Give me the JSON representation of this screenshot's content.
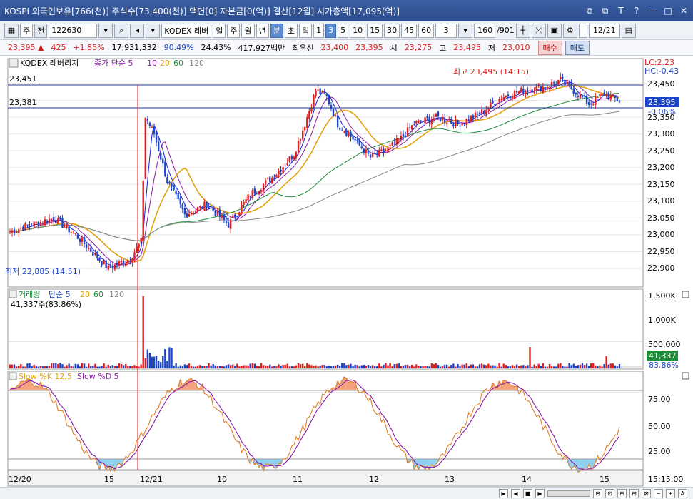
{
  "window": {
    "title": "KOSPI 외국인보유[766(천)] 주식수[73,400(천)] 액면[0] 자본금[0(억)] 결산[12월] 시가총액[17,095(억)]",
    "buttons": [
      "⧉",
      "⧉",
      "T",
      "?",
      "—",
      "□",
      "✕"
    ]
  },
  "toolbar": {
    "market": "주",
    "mode": "전",
    "code": "122630",
    "stock_name": "KODEX 레버",
    "periods": [
      "일",
      "주",
      "월",
      "년",
      "분",
      "초",
      "틱"
    ],
    "active_period": "분",
    "intervals": [
      "1",
      "3",
      "5",
      "10",
      "15",
      "30",
      "45",
      "60"
    ],
    "active_interval": "3",
    "interval_value": "3",
    "page": "160",
    "page_total": "/901",
    "date": "12/21"
  },
  "quote": {
    "price": "23,395",
    "arrow": "▲",
    "change": "425",
    "change_pct": "+1.85%",
    "volume": "17,931,332",
    "rate1": "90.49%",
    "rate2": "24.43%",
    "amount": "417,927백만",
    "best_label": "최우선",
    "best_ask": "23,400",
    "best_bid": "23,395",
    "open_label": "시",
    "open": "23,275",
    "high_label": "고",
    "high": "23,495",
    "low_label": "저",
    "low": "23,010",
    "buy_button": "매수",
    "sell_button": "매도"
  },
  "price_panel": {
    "name": "KODEX 레버리지",
    "indicator": "종가 단순 5",
    "ma_labels": [
      "10",
      "20",
      "60",
      "120"
    ],
    "lc": "LC:2.23",
    "hc": "HC:-0.43",
    "hline_top": "23,451",
    "hline_bottom": "23,381",
    "current_price": "23,395",
    "current_pct": "-0.06%",
    "max_label": "최고 23,495 (14:15)",
    "min_label": "최저 22,885 (14:51)",
    "y_ticks": [
      "23,450",
      "23,400",
      "23,350",
      "23,300",
      "23,250",
      "23,200",
      "23,150",
      "23,100",
      "23,050",
      "23,000",
      "22,950",
      "22,900"
    ]
  },
  "volume_panel": {
    "name": "거래량",
    "indicator": "단순 5",
    "ma_labels": [
      "20",
      "60",
      "120"
    ],
    "info": "41,337주(83.86%)",
    "y_ticks": [
      "1,500K",
      "1,000K",
      "500,000"
    ],
    "current": "41,337",
    "current_pct": "83.86%"
  },
  "stoch_panel": {
    "k_label": "Slow %K 12,5",
    "d_label": "Slow %D 5",
    "y_ticks": [
      "75.00",
      "50.00",
      "25.00"
    ]
  },
  "x_axis": {
    "labels": [
      "12/20",
      "15",
      "12/21",
      "10",
      "11",
      "12",
      "13",
      "14",
      "15"
    ],
    "time": "15:15:00"
  },
  "colors": {
    "up": "#e0201e",
    "down": "#1d45c9",
    "ma5": "#1a1ad6",
    "ma10": "#8a1aa8",
    "ma20": "#e2a10e",
    "ma60": "#1f8c3a",
    "ma120": "#888888"
  }
}
